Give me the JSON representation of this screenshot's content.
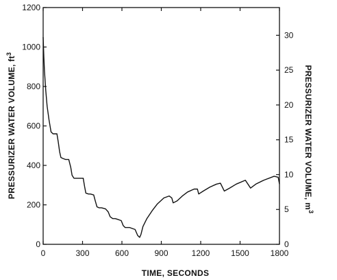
{
  "chart_data": {
    "type": "line",
    "title": "",
    "xlabel": "TIME,  SECONDS",
    "ylabel": "PRESSURIZER  WATER VOLUME,  ft",
    "ylabel_unit_sup": "3",
    "y2label": "PRESSURIZER  WATER VOLUME,  m",
    "y2label_unit_sup": "3",
    "xlim": [
      0,
      1800
    ],
    "ylim": [
      0,
      1200
    ],
    "y2lim": [
      0,
      33.98
    ],
    "grid": false,
    "x_ticks": [
      0,
      300,
      600,
      900,
      1200,
      1500,
      1800
    ],
    "x_tick_labels": [
      "0",
      "300",
      "600",
      "900",
      "1200",
      "1500",
      "1800"
    ],
    "y_ticks": [
      0,
      200,
      400,
      600,
      800,
      1000,
      1200
    ],
    "y_tick_labels": [
      "0",
      "200",
      "400",
      "600",
      "800",
      "1000",
      "1200"
    ],
    "y2_ticks": [
      0,
      5,
      10,
      15,
      20,
      25,
      30
    ],
    "y2_tick_labels": [
      "0",
      "5",
      "10",
      "15",
      "20",
      "25",
      "30"
    ],
    "series": [
      {
        "x": [
          0,
          5,
          10,
          20,
          30,
          45,
          60,
          75,
          90,
          105,
          115,
          125,
          135,
          150,
          170,
          195,
          210,
          220,
          235,
          255,
          280,
          305,
          315,
          325,
          345,
          360,
          385,
          395,
          410,
          425,
          445,
          475,
          495,
          510,
          530,
          550,
          575,
          595,
          610,
          625,
          640,
          660,
          680,
          700,
          720,
          735,
          745,
          760,
          790,
          830,
          870,
          920,
          960,
          980,
          990,
          1020,
          1060,
          1100,
          1150,
          1175,
          1185,
          1220,
          1270,
          1320,
          1350,
          1365,
          1380,
          1420,
          1470,
          1540,
          1565,
          1580,
          1620,
          1680,
          1760,
          1790,
          1800
        ],
        "y": [
          1050,
          950,
          880,
          780,
          700,
          630,
          570,
          560,
          560,
          560,
          520,
          470,
          440,
          435,
          430,
          430,
          390,
          350,
          335,
          335,
          335,
          335,
          295,
          260,
          255,
          255,
          250,
          225,
          190,
          185,
          185,
          180,
          165,
          140,
          130,
          130,
          125,
          120,
          95,
          85,
          85,
          85,
          80,
          75,
          45,
          35,
          50,
          90,
          130,
          170,
          205,
          235,
          245,
          235,
          210,
          220,
          245,
          265,
          280,
          280,
          255,
          270,
          290,
          305,
          310,
          290,
          270,
          285,
          305,
          325,
          300,
          285,
          305,
          325,
          345,
          340,
          305
        ]
      }
    ]
  }
}
